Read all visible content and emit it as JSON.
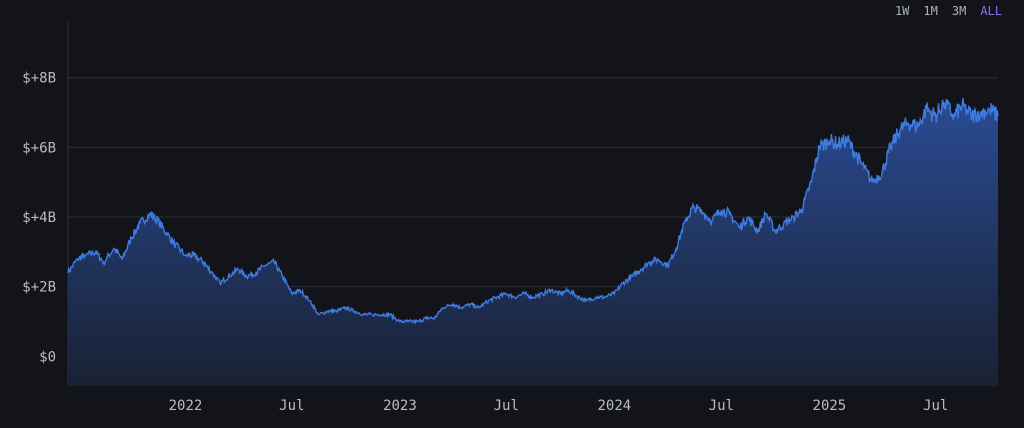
{
  "range_selector": {
    "options": [
      {
        "label": "1W",
        "active": false
      },
      {
        "label": "1M",
        "active": false
      },
      {
        "label": "3M",
        "active": false
      },
      {
        "label": "ALL",
        "active": true
      }
    ],
    "active_color": "#8e6cf0"
  },
  "colors": {
    "background": "#13141a",
    "line": "#3f7be0",
    "fill_top": "#2b4f9b",
    "fill_bottom": "#1a2236",
    "grid": "#2d3039"
  },
  "chart_data": {
    "type": "area",
    "title": "",
    "xlabel": "",
    "ylabel": "",
    "grid": true,
    "ylim": [
      -0.85,
      9.6
    ],
    "xlim": [
      "2021-06-15",
      "2025-10-15"
    ],
    "y_ticks": [
      {
        "value": 0,
        "label": "$0"
      },
      {
        "value": 2,
        "label": "$+2B"
      },
      {
        "value": 4,
        "label": "$+4B"
      },
      {
        "value": 6,
        "label": "$+6B"
      },
      {
        "value": 8,
        "label": "$+8B"
      }
    ],
    "x_ticks": [
      {
        "date": "2022-01-01",
        "label": "2022"
      },
      {
        "date": "2022-07-01",
        "label": "Jul"
      },
      {
        "date": "2023-01-01",
        "label": "2023"
      },
      {
        "date": "2023-07-01",
        "label": "Jul"
      },
      {
        "date": "2024-01-01",
        "label": "2024"
      },
      {
        "date": "2024-07-01",
        "label": "Jul"
      },
      {
        "date": "2025-01-01",
        "label": "2025"
      },
      {
        "date": "2025-07-01",
        "label": "Jul"
      }
    ],
    "series": [
      {
        "x": [
          "2021-06-15",
          "2021-07-01",
          "2021-07-15",
          "2021-08-01",
          "2021-08-15",
          "2021-09-01",
          "2021-09-15",
          "2021-10-01",
          "2021-10-15",
          "2021-11-01",
          "2021-11-15",
          "2021-12-01",
          "2021-12-15",
          "2022-01-01",
          "2022-01-15",
          "2022-02-01",
          "2022-02-15",
          "2022-03-01",
          "2022-03-15",
          "2022-04-01",
          "2022-04-15",
          "2022-05-01",
          "2022-05-15",
          "2022-06-01",
          "2022-06-15",
          "2022-07-01",
          "2022-07-15",
          "2022-08-01",
          "2022-08-15",
          "2022-09-01",
          "2022-09-15",
          "2022-10-01",
          "2022-10-15",
          "2022-11-01",
          "2022-11-15",
          "2022-12-01",
          "2022-12-15",
          "2023-01-01",
          "2023-01-15",
          "2023-02-01",
          "2023-02-15",
          "2023-03-01",
          "2023-03-15",
          "2023-04-01",
          "2023-04-15",
          "2023-05-01",
          "2023-05-15",
          "2023-06-01",
          "2023-06-15",
          "2023-07-01",
          "2023-07-15",
          "2023-08-01",
          "2023-08-15",
          "2023-09-01",
          "2023-09-15",
          "2023-10-01",
          "2023-10-15",
          "2023-11-01",
          "2023-11-15",
          "2023-12-01",
          "2023-12-15",
          "2024-01-01",
          "2024-01-15",
          "2024-02-01",
          "2024-02-15",
          "2024-03-01",
          "2024-03-15",
          "2024-04-01",
          "2024-04-15",
          "2024-05-01",
          "2024-05-15",
          "2024-06-01",
          "2024-06-15",
          "2024-07-01",
          "2024-07-15",
          "2024-08-01",
          "2024-08-15",
          "2024-09-01",
          "2024-09-15",
          "2024-10-01",
          "2024-10-15",
          "2024-11-01",
          "2024-11-15",
          "2024-12-01",
          "2024-12-15",
          "2025-01-01",
          "2025-01-15",
          "2025-02-01",
          "2025-02-15",
          "2025-03-01",
          "2025-03-15",
          "2025-04-01",
          "2025-04-15",
          "2025-05-01",
          "2025-05-15",
          "2025-06-01",
          "2025-06-15",
          "2025-07-01",
          "2025-07-15",
          "2025-08-01",
          "2025-08-15",
          "2025-09-01",
          "2025-09-15",
          "2025-10-01",
          "2025-10-15"
        ],
        "y": [
          2.4,
          2.8,
          2.9,
          3.0,
          2.7,
          3.1,
          2.8,
          3.4,
          3.8,
          4.1,
          3.9,
          3.5,
          3.2,
          2.9,
          2.9,
          2.7,
          2.4,
          2.1,
          2.3,
          2.5,
          2.3,
          2.4,
          2.6,
          2.7,
          2.3,
          1.8,
          1.9,
          1.6,
          1.2,
          1.3,
          1.3,
          1.4,
          1.3,
          1.2,
          1.2,
          1.2,
          1.2,
          1.0,
          1.0,
          1.0,
          1.1,
          1.1,
          1.4,
          1.5,
          1.4,
          1.5,
          1.4,
          1.6,
          1.7,
          1.8,
          1.7,
          1.8,
          1.7,
          1.8,
          1.9,
          1.8,
          1.9,
          1.7,
          1.6,
          1.7,
          1.7,
          1.8,
          2.1,
          2.3,
          2.5,
          2.7,
          2.8,
          2.6,
          3.1,
          3.9,
          4.3,
          4.1,
          3.9,
          4.2,
          4.1,
          3.7,
          4.0,
          3.6,
          4.1,
          3.6,
          3.8,
          4.0,
          4.2,
          5.0,
          6.0,
          6.2,
          6.1,
          6.2,
          5.8,
          5.4,
          5.0,
          5.3,
          6.0,
          6.5,
          6.7,
          6.6,
          7.1,
          6.9,
          7.3,
          6.9,
          7.2,
          6.9,
          7.0,
          7.1,
          6.9
        ]
      }
    ]
  }
}
